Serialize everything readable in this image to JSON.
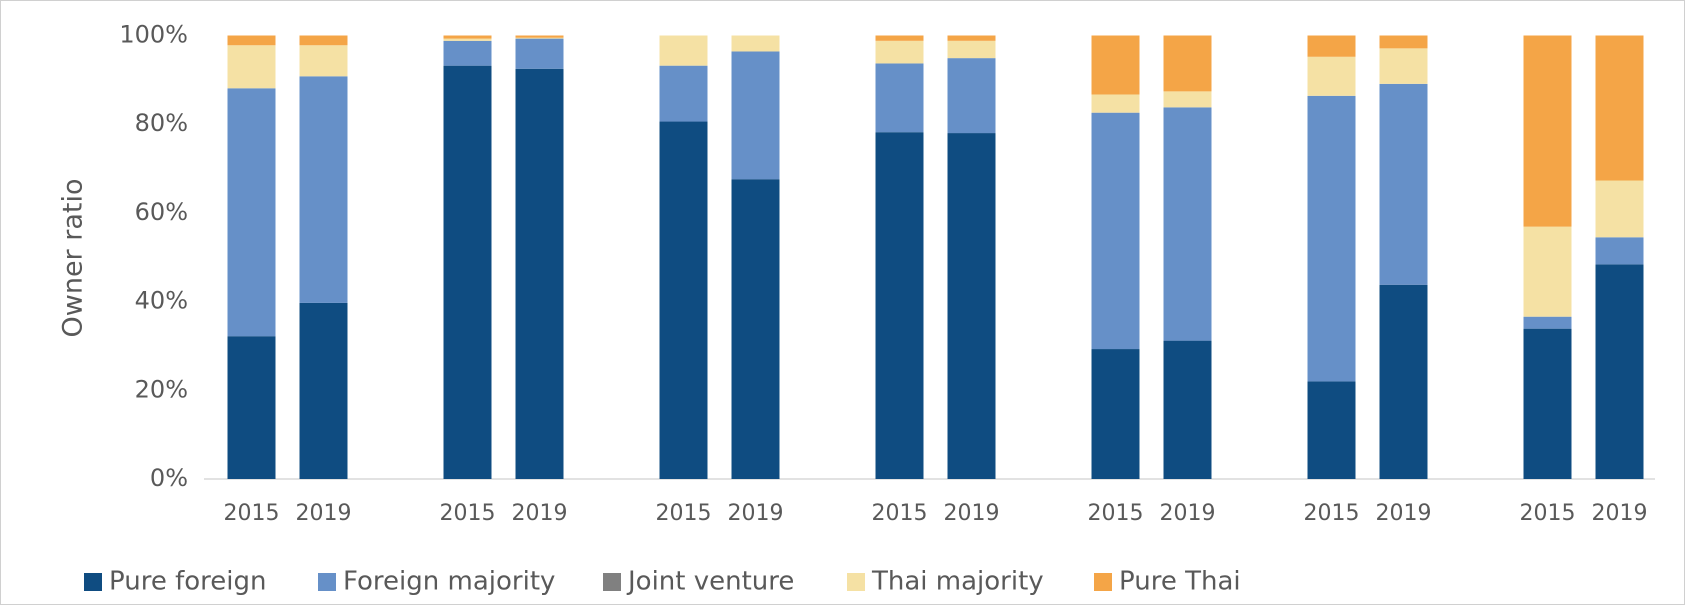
{
  "chart_data": {
    "type": "stacked_bar",
    "ylabel": "Owner ratio",
    "categories": [
      "2015",
      "2019",
      "2015",
      "2019",
      "2015",
      "2019",
      "2015",
      "2019",
      "2015",
      "2019",
      "2015",
      "2019",
      "2015",
      "2019"
    ],
    "series": [
      {
        "name": "Pure foreign",
        "color": "#0f4c81",
        "values": [
          32.2,
          39.7,
          93.2,
          92.5,
          80.6,
          67.6,
          78.2,
          78.0,
          29.3,
          31.2,
          22.0,
          43.8,
          33.9,
          48.4
        ]
      },
      {
        "name": "Foreign majority",
        "color": "#6690c8",
        "values": [
          55.9,
          51.1,
          5.6,
          6.8,
          12.6,
          28.8,
          15.5,
          16.9,
          53.3,
          52.6,
          64.4,
          45.3,
          2.7,
          6.1
        ]
      },
      {
        "name": "Joint venture",
        "color": "#808080",
        "values": [
          0,
          0,
          0,
          0,
          0,
          0,
          0,
          0,
          0,
          0,
          0,
          0,
          0,
          0
        ]
      },
      {
        "name": "Thai majority",
        "color": "#f5e1a4",
        "values": [
          9.7,
          7.0,
          0.5,
          0.2,
          6.8,
          3.6,
          5.1,
          3.9,
          4.1,
          3.6,
          8.8,
          8.0,
          20.3,
          12.8
        ]
      },
      {
        "name": "Pure Thai",
        "color": "#f4a547",
        "values": [
          2.2,
          2.2,
          0.7,
          0.5,
          0,
          0,
          1.2,
          1.2,
          13.3,
          12.6,
          4.8,
          2.9,
          43.1,
          32.7
        ]
      }
    ],
    "ylim": [
      0,
      100
    ],
    "yticks": [
      {
        "value": 0,
        "label": "0%"
      },
      {
        "value": 20,
        "label": "20%"
      },
      {
        "value": 40,
        "label": "40%"
      },
      {
        "value": 60,
        "label": "60%"
      },
      {
        "value": 80,
        "label": "80%"
      },
      {
        "value": 100,
        "label": "100%"
      }
    ],
    "grid": false,
    "legend": "bottom"
  }
}
